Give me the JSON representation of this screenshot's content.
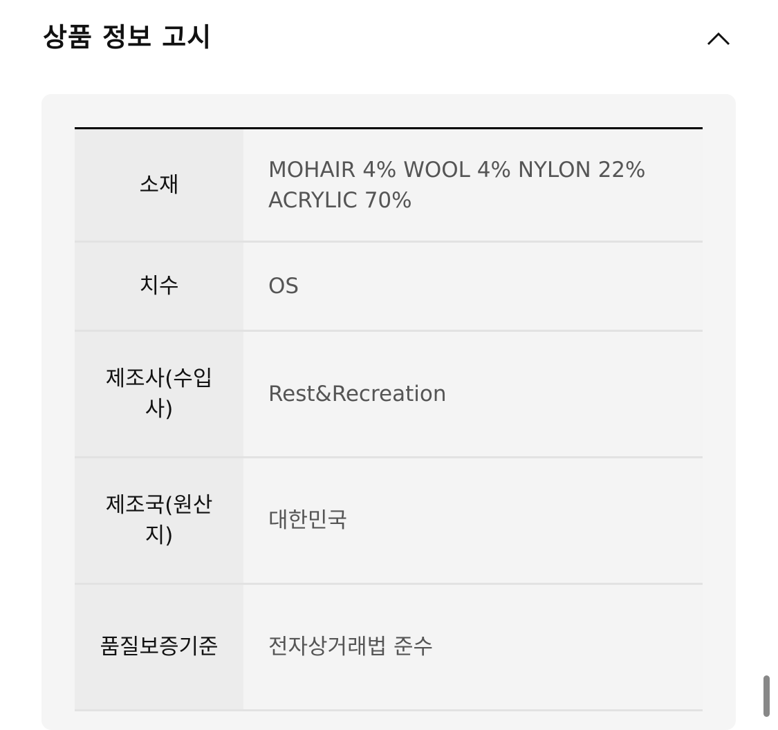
{
  "header": {
    "title": "상품 정보 고시",
    "toggle_icon": "chevron-up-icon"
  },
  "rows": [
    {
      "label": "소재",
      "value": "MOHAIR 4% WOOL 4% NYLON 22% ACRYLIC 70%"
    },
    {
      "label": "치수",
      "value": "OS"
    },
    {
      "label": "제조사(수입사)",
      "value": "Rest&Recreation"
    },
    {
      "label": "제조국(원산지)",
      "value": "대한민국"
    },
    {
      "label": "품질보증기준",
      "value": "전자상거래법 준수"
    }
  ]
}
